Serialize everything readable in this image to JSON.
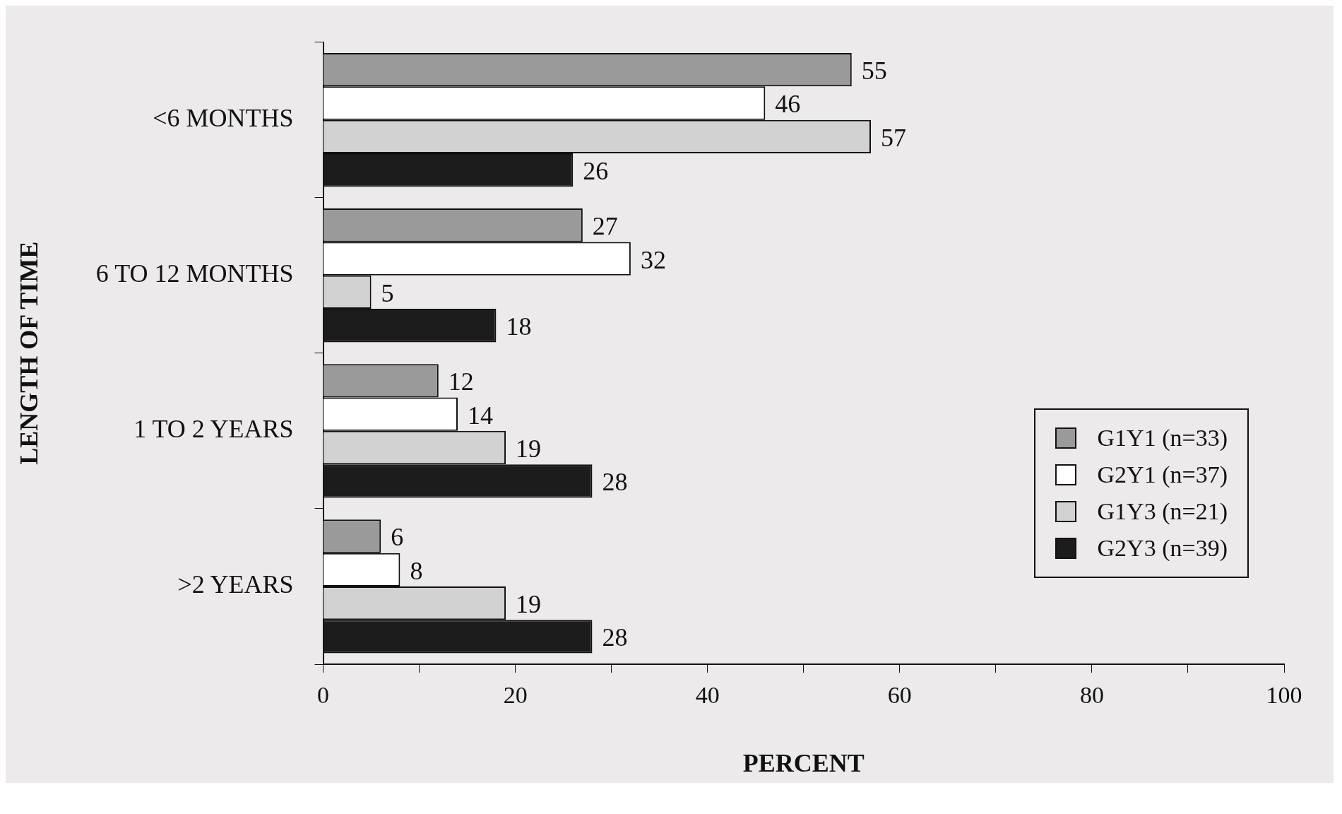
{
  "chart_data": {
    "type": "bar",
    "orientation": "horizontal",
    "xlabel": "PERCENT",
    "ylabel": "LENGTH OF TIME",
    "categories": [
      "<6 MONTHS",
      "6 TO 12 MONTHS",
      "1 TO 2 YEARS",
      ">2 YEARS"
    ],
    "series": [
      {
        "name": "G1Y1 (n=33)",
        "color": "#9a9a9a",
        "values": [
          55,
          27,
          12,
          6
        ]
      },
      {
        "name": "G2Y1 (n=37)",
        "color": "#ffffff",
        "values": [
          46,
          32,
          14,
          8
        ]
      },
      {
        "name": "G1Y3 (n=21)",
        "color": "#d2d2d2",
        "values": [
          57,
          5,
          19,
          19
        ]
      },
      {
        "name": "G2Y3 (n=39)",
        "color": "#1c1c1c",
        "values": [
          26,
          18,
          28,
          28
        ]
      }
    ],
    "xlim": [
      0,
      100
    ],
    "xticks": [
      0,
      {
        "value": 10,
        "label": null
      },
      20,
      {
        "value": 30,
        "label": null
      },
      40,
      {
        "value": 50,
        "label": null
      },
      60,
      {
        "value": 70,
        "label": null
      },
      80,
      {
        "value": 90,
        "label": null
      },
      100
    ],
    "data_labels": true,
    "legend": "bottom right",
    "grid": false
  }
}
